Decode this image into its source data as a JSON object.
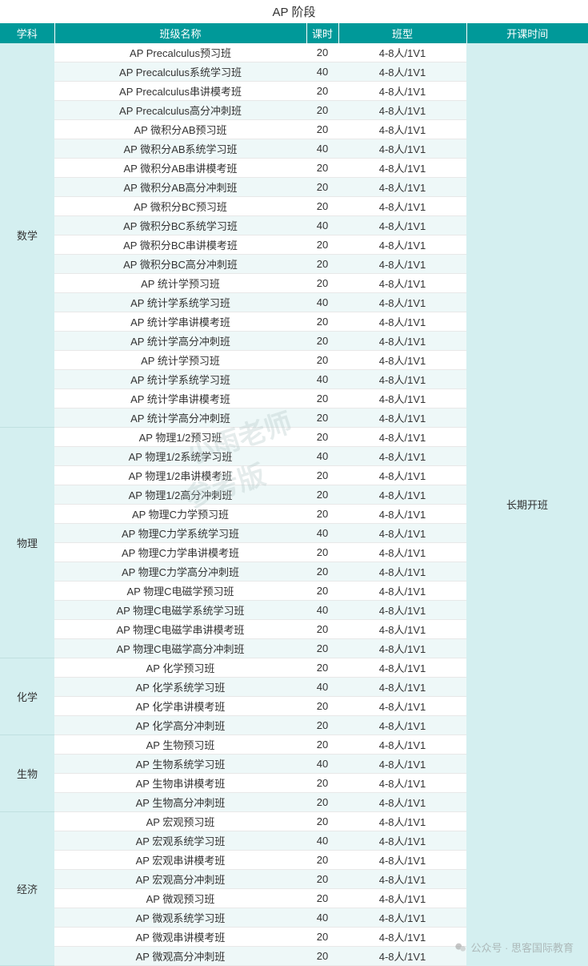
{
  "title": "AP 阶段",
  "headers": {
    "subject": "学科",
    "classname": "班级名称",
    "hours": "课时",
    "classtype": "班型",
    "schedule": "开课时间"
  },
  "schedule_text": "长期开班",
  "watermarks": {
    "line1": "小雨老师",
    "line2": "参考版",
    "footer": "公众号 · 思客国际教育"
  },
  "colors": {
    "header_bg": "#009999",
    "header_text": "#ffffff",
    "subject_bg": "#d4eff0",
    "row_alt_bg": "#eef8f8",
    "row_bg": "#ffffff",
    "border": "#e8e8e8",
    "text": "#333333"
  },
  "font": {
    "title_size": 15,
    "header_size": 13,
    "body_size": 13
  },
  "column_widths": {
    "subject": 68,
    "name": 315,
    "hours": 40,
    "type": 160,
    "schedule": 152
  },
  "default_classtype": "4-8人/1V1",
  "subjects": [
    {
      "name": "数学",
      "rows": [
        {
          "classname": "AP Precalculus预习班",
          "hours": 20
        },
        {
          "classname": "AP Precalculus系统学习班",
          "hours": 40
        },
        {
          "classname": "AP Precalculus串讲模考班",
          "hours": 20
        },
        {
          "classname": "AP Precalculus高分冲刺班",
          "hours": 20
        },
        {
          "classname": "AP 微积分AB预习班",
          "hours": 20
        },
        {
          "classname": "AP 微积分AB系统学习班",
          "hours": 40
        },
        {
          "classname": "AP 微积分AB串讲模考班",
          "hours": 20
        },
        {
          "classname": "AP 微积分AB高分冲刺班",
          "hours": 20
        },
        {
          "classname": "AP 微积分BC预习班",
          "hours": 20
        },
        {
          "classname": "AP 微积分BC系统学习班",
          "hours": 40
        },
        {
          "classname": "AP 微积分BC串讲模考班",
          "hours": 20
        },
        {
          "classname": "AP 微积分BC高分冲刺班",
          "hours": 20
        },
        {
          "classname": "AP 统计学预习班",
          "hours": 20
        },
        {
          "classname": "AP 统计学系统学习班",
          "hours": 40
        },
        {
          "classname": "AP 统计学串讲模考班",
          "hours": 20
        },
        {
          "classname": "AP 统计学高分冲刺班",
          "hours": 20
        },
        {
          "classname": "AP 统计学预习班",
          "hours": 20
        },
        {
          "classname": "AP 统计学系统学习班",
          "hours": 40
        },
        {
          "classname": "AP 统计学串讲模考班",
          "hours": 20
        },
        {
          "classname": "AP 统计学高分冲刺班",
          "hours": 20
        }
      ]
    },
    {
      "name": "物理",
      "rows": [
        {
          "classname": "AP 物理1/2预习班",
          "hours": 20
        },
        {
          "classname": "AP 物理1/2系统学习班",
          "hours": 40
        },
        {
          "classname": "AP 物理1/2串讲模考班",
          "hours": 20
        },
        {
          "classname": "AP 物理1/2高分冲刺班",
          "hours": 20
        },
        {
          "classname": "AP 物理C力学预习班",
          "hours": 20
        },
        {
          "classname": "AP 物理C力学系统学习班",
          "hours": 40
        },
        {
          "classname": "AP 物理C力学串讲模考班",
          "hours": 20
        },
        {
          "classname": "AP 物理C力学高分冲刺班",
          "hours": 20
        },
        {
          "classname": "AP 物理C电磁学预习班",
          "hours": 20
        },
        {
          "classname": "AP 物理C电磁学系统学习班",
          "hours": 40
        },
        {
          "classname": "AP 物理C电磁学串讲模考班",
          "hours": 20
        },
        {
          "classname": "AP 物理C电磁学高分冲刺班",
          "hours": 20
        }
      ]
    },
    {
      "name": "化学",
      "rows": [
        {
          "classname": "AP 化学预习班",
          "hours": 20
        },
        {
          "classname": "AP 化学系统学习班",
          "hours": 40
        },
        {
          "classname": "AP 化学串讲模考班",
          "hours": 20
        },
        {
          "classname": "AP 化学高分冲刺班",
          "hours": 20
        }
      ]
    },
    {
      "name": "生物",
      "rows": [
        {
          "classname": "AP 生物预习班",
          "hours": 20
        },
        {
          "classname": "AP 生物系统学习班",
          "hours": 40
        },
        {
          "classname": "AP 生物串讲模考班",
          "hours": 20
        },
        {
          "classname": "AP 生物高分冲刺班",
          "hours": 20
        }
      ]
    },
    {
      "name": "经济",
      "rows": [
        {
          "classname": "AP 宏观预习班",
          "hours": 20
        },
        {
          "classname": "AP 宏观系统学习班",
          "hours": 40
        },
        {
          "classname": "AP 宏观串讲模考班",
          "hours": 20
        },
        {
          "classname": "AP 宏观高分冲刺班",
          "hours": 20
        },
        {
          "classname": "AP 微观预习班",
          "hours": 20
        },
        {
          "classname": "AP 微观系统学习班",
          "hours": 40
        },
        {
          "classname": "AP 微观串讲模考班",
          "hours": 20
        },
        {
          "classname": "AP 微观高分冲刺班",
          "hours": 20
        }
      ]
    }
  ]
}
